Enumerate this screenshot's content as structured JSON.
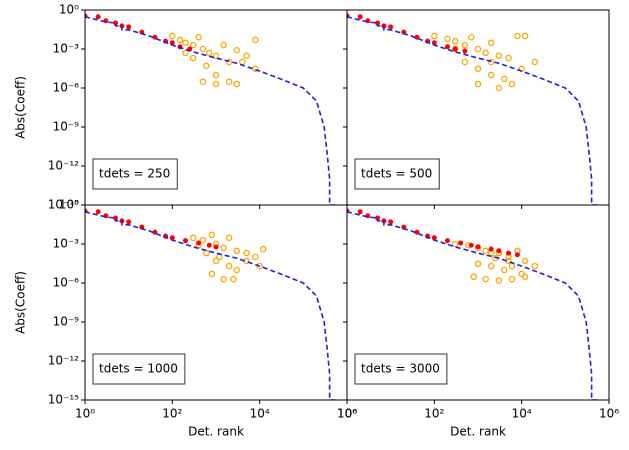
{
  "chart_data": [
    {
      "type": "scatter",
      "annotation": "tdets = 250",
      "ylabel": "Abs(Coeff)",
      "log_x": true,
      "log_y": true,
      "xlim": [
        1,
        1000000
      ],
      "ylim": [
        1e-15,
        1
      ],
      "yticks": [
        {
          "value": 1,
          "label": "10⁰"
        },
        {
          "value": 0.001,
          "label": "10⁻³"
        },
        {
          "value": 1e-06,
          "label": "10⁻⁶"
        },
        {
          "value": 1e-09,
          "label": "10⁻⁹"
        },
        {
          "value": 1e-12,
          "label": "10⁻¹²"
        },
        {
          "value": 1e-15,
          "label": "10⁻¹⁵"
        }
      ],
      "series": [
        {
          "mode": "markers",
          "color": "#ffa500",
          "x": [
            100,
            150,
            200,
            300,
            400,
            500,
            700,
            1000,
            1500,
            2000,
            3000,
            5000,
            8000,
            300,
            600,
            1000,
            2000,
            500,
            1000,
            3000,
            8000,
            200,
            4000
          ],
          "values": [
            0.01,
            0.005,
            0.003,
            0.002,
            0.008,
            0.001,
            0.0005,
            0.0003,
            0.002,
            0.0001,
            0.0008,
            0.0003,
            0.005,
            0.0002,
            5e-05,
            1e-05,
            3e-06,
            3e-06,
            2e-06,
            2e-06,
            3e-05,
            0.0005,
            0.0001
          ]
        },
        {
          "mode": "markers",
          "color": "#ff0000",
          "x": [
            1,
            2,
            3,
            5,
            7,
            10,
            20,
            40,
            70,
            100,
            150,
            250
          ],
          "values": [
            0.35,
            0.3,
            0.15,
            0.1,
            0.06,
            0.05,
            0.02,
            0.008,
            0.004,
            0.003,
            0.0015,
            0.001
          ]
        },
        {
          "mode": "line",
          "dash": true,
          "color": "#1f1fdd",
          "x": [
            1,
            3,
            5,
            5,
            7,
            7,
            10,
            30,
            100,
            300,
            1000,
            3000,
            10000,
            30000,
            100000,
            200000,
            300000,
            350000,
            400000,
            400000,
            600000
          ],
          "values": [
            0.3,
            0.12,
            0.1,
            0.06,
            0.06,
            0.03,
            0.03,
            0.01,
            0.002,
            0.0006,
            0.0002,
            8e-05,
            2e-05,
            5e-06,
            1e-06,
            1e-07,
            1e-09,
            1e-11,
            1e-13,
            1e-15,
            1e-15
          ]
        }
      ]
    },
    {
      "type": "scatter",
      "annotation": "tdets = 500",
      "log_x": true,
      "log_y": true,
      "xlim": [
        1,
        1000000
      ],
      "ylim": [
        1e-15,
        1
      ],
      "series": [
        {
          "mode": "markers",
          "color": "#ffa500",
          "x": [
            100,
            200,
            300,
            500,
            700,
            1000,
            1500,
            2000,
            3000,
            5000,
            8000,
            12000,
            20000,
            500,
            1000,
            2000,
            4000,
            1000,
            3000,
            6000,
            300,
            10000,
            2000
          ],
          "values": [
            0.01,
            0.006,
            0.004,
            0.002,
            0.008,
            0.001,
            0.0005,
            0.003,
            0.0003,
            0.0002,
            0.01,
            0.01,
            0.0001,
            0.0001,
            3e-05,
            1e-05,
            5e-06,
            2e-06,
            1e-06,
            2e-06,
            0.001,
            3e-05,
            0.0001
          ]
        },
        {
          "mode": "markers",
          "color": "#ff0000",
          "x": [
            1,
            2,
            3,
            5,
            7,
            10,
            20,
            40,
            70,
            100,
            200,
            300,
            500
          ],
          "values": [
            0.35,
            0.3,
            0.15,
            0.1,
            0.06,
            0.05,
            0.02,
            0.008,
            0.004,
            0.003,
            0.0015,
            0.001,
            0.0007
          ]
        },
        {
          "mode": "line",
          "dash": true,
          "color": "#1f1fdd",
          "x": [
            1,
            3,
            5,
            5,
            7,
            7,
            10,
            30,
            100,
            300,
            1000,
            3000,
            10000,
            30000,
            100000,
            200000,
            300000,
            350000,
            400000,
            400000,
            600000
          ],
          "values": [
            0.3,
            0.12,
            0.1,
            0.06,
            0.06,
            0.03,
            0.03,
            0.01,
            0.002,
            0.0006,
            0.0002,
            8e-05,
            2e-05,
            5e-06,
            1e-06,
            1e-07,
            1e-09,
            1e-11,
            1e-13,
            1e-15,
            1e-15
          ]
        }
      ]
    },
    {
      "type": "scatter",
      "annotation": "tdets = 1000",
      "ylabel": "Abs(Coeff)",
      "xlabel": "Det. rank",
      "log_x": true,
      "log_y": true,
      "xlim": [
        1,
        1000000
      ],
      "ylim": [
        1e-15,
        1
      ],
      "xticks": [
        {
          "value": 1,
          "label": "10⁰"
        },
        {
          "value": 100,
          "label": "10²"
        },
        {
          "value": 10000,
          "label": "10⁴"
        },
        {
          "value": 1000000,
          "label": "10⁶"
        }
      ],
      "yticks": [
        {
          "value": 1,
          "label": "10⁰"
        },
        {
          "value": 0.001,
          "label": "10⁻³"
        },
        {
          "value": 1e-06,
          "label": "10⁻⁶"
        },
        {
          "value": 1e-09,
          "label": "10⁻⁹"
        },
        {
          "value": 1e-12,
          "label": "10⁻¹²"
        },
        {
          "value": 1e-15,
          "label": "10⁻¹⁵"
        }
      ],
      "series": [
        {
          "mode": "markers",
          "color": "#ffa500",
          "x": [
            300,
            500,
            800,
            1000,
            1500,
            2000,
            3000,
            5000,
            8000,
            12000,
            600,
            1000,
            2000,
            3000,
            800,
            1500,
            2500,
            5000,
            400,
            10000,
            1200
          ],
          "values": [
            0.003,
            0.002,
            0.005,
            0.001,
            0.0005,
            0.003,
            0.0003,
            0.0002,
            0.0001,
            0.0004,
            0.0002,
            5e-05,
            2e-05,
            1e-05,
            5e-06,
            2e-06,
            2e-06,
            5e-05,
            0.0008,
            2e-05,
            0.0001
          ]
        },
        {
          "mode": "markers",
          "color": "#ff0000",
          "x": [
            1,
            2,
            3,
            5,
            7,
            10,
            20,
            40,
            70,
            100,
            200,
            400,
            700,
            1000
          ],
          "values": [
            0.35,
            0.3,
            0.15,
            0.1,
            0.06,
            0.05,
            0.02,
            0.008,
            0.004,
            0.003,
            0.0018,
            0.0012,
            0.0008,
            0.0006
          ]
        },
        {
          "mode": "line",
          "dash": true,
          "color": "#1f1fdd",
          "x": [
            1,
            3,
            5,
            5,
            7,
            7,
            10,
            30,
            100,
            300,
            1000,
            3000,
            10000,
            30000,
            100000,
            200000,
            300000,
            350000,
            400000,
            400000,
            600000
          ],
          "values": [
            0.3,
            0.12,
            0.1,
            0.06,
            0.06,
            0.03,
            0.03,
            0.01,
            0.002,
            0.0006,
            0.0002,
            8e-05,
            2e-05,
            5e-06,
            1e-06,
            1e-07,
            1e-09,
            1e-11,
            1e-13,
            1e-15,
            1e-15
          ]
        }
      ]
    },
    {
      "type": "scatter",
      "annotation": "tdets = 3000",
      "xlabel": "Det. rank",
      "log_x": true,
      "log_y": true,
      "xlim": [
        1,
        1000000
      ],
      "ylim": [
        1e-15,
        1
      ],
      "xticks": [
        {
          "value": 1,
          "label": "10⁰"
        },
        {
          "value": 100,
          "label": "10²"
        },
        {
          "value": 10000,
          "label": "10⁴"
        },
        {
          "value": 1000000,
          "label": "10⁶"
        }
      ],
      "series": [
        {
          "mode": "markers",
          "color": "#ffa500",
          "x": [
            300,
            600,
            1000,
            1500,
            2000,
            3000,
            5000,
            8000,
            12000,
            20000,
            1000,
            2000,
            4000,
            6000,
            10000,
            800,
            1500,
            3000,
            6000,
            12000,
            2500,
            5000
          ],
          "values": [
            0.001,
            0.0008,
            0.0005,
            0.0003,
            0.0002,
            0.0002,
            0.0001,
            0.0003,
            5e-05,
            2e-05,
            3e-05,
            2e-05,
            1e-05,
            2e-05,
            5e-06,
            3e-06,
            2e-06,
            1.5e-06,
            2e-06,
            3e-06,
            8e-05,
            5e-05
          ]
        },
        {
          "mode": "markers",
          "color": "#ff0000",
          "x": [
            1,
            2,
            3,
            5,
            7,
            10,
            20,
            40,
            70,
            100,
            200,
            400,
            700,
            1000,
            2000,
            3000,
            5000,
            8000
          ],
          "values": [
            0.35,
            0.3,
            0.15,
            0.1,
            0.06,
            0.05,
            0.02,
            0.008,
            0.004,
            0.003,
            0.0018,
            0.0012,
            0.0008,
            0.0006,
            0.0004,
            0.0003,
            0.0002,
            0.00015
          ]
        },
        {
          "mode": "line",
          "dash": true,
          "color": "#1f1fdd",
          "x": [
            1,
            3,
            5,
            5,
            7,
            7,
            10,
            30,
            100,
            300,
            1000,
            3000,
            10000,
            30000,
            100000,
            200000,
            300000,
            350000,
            400000,
            400000,
            600000
          ],
          "values": [
            0.3,
            0.12,
            0.1,
            0.06,
            0.06,
            0.03,
            0.03,
            0.01,
            0.002,
            0.0006,
            0.0002,
            8e-05,
            2e-05,
            5e-06,
            1e-06,
            1e-07,
            1e-09,
            1e-11,
            1e-13,
            1e-15,
            1e-15
          ]
        }
      ]
    }
  ]
}
